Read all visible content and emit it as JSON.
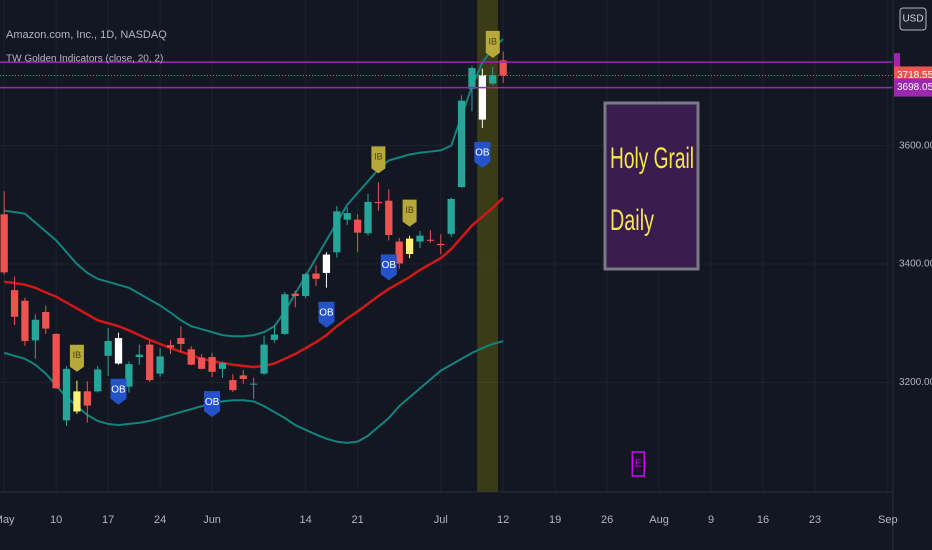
{
  "chart_data": {
    "type": "candlestick",
    "title": "Amazon.com, Inc., 1D, NASDAQ",
    "indicator": "TW Golden Indicators (close, 20, 2)",
    "currency": "USD",
    "open": [
      3484,
      3356,
      3338,
      3271,
      3319,
      3282,
      3136,
      3185,
      3185,
      3185,
      3245,
      3275,
      3193,
      3243,
      3264,
      3215,
      3263,
      3275,
      3256,
      3242,
      3243,
      3223,
      3204,
      3212,
      3197,
      3215,
      3272,
      3282,
      3350,
      3346,
      3384,
      3385,
      3420,
      3475,
      3475,
      3452,
      3505,
      3507,
      3438,
      3417,
      3438,
      3441,
      3434,
      3451,
      3530,
      3696,
      3644,
      3705,
      3744
    ],
    "high": [
      3523,
      3379,
      3343,
      3315,
      3330,
      3283,
      3228,
      3203,
      3202,
      3228,
      3292,
      3284,
      3235,
      3264,
      3270,
      3258,
      3272,
      3295,
      3261,
      3248,
      3250,
      3235,
      3214,
      3221,
      3208,
      3279,
      3297,
      3353,
      3355,
      3385,
      3398,
      3420,
      3498,
      3496,
      3484,
      3519,
      3538,
      3526,
      3444,
      3448,
      3456,
      3457,
      3450,
      3512,
      3685,
      3735,
      3730,
      3733,
      3759
    ],
    "low": [
      3382,
      3297,
      3262,
      3240,
      3282,
      3190,
      3127,
      3147,
      3132,
      3183,
      3211,
      3230,
      3183,
      3230,
      3201,
      3210,
      3248,
      3251,
      3229,
      3222,
      3209,
      3208,
      3184,
      3198,
      3172,
      3213,
      3267,
      3280,
      3327,
      3342,
      3363,
      3360,
      3411,
      3466,
      3420,
      3448,
      3490,
      3440,
      3392,
      3410,
      3427,
      3436,
      3417,
      3446,
      3529,
      3658,
      3630,
      3702,
      3706
    ],
    "close": [
      3386,
      3311,
      3270,
      3306,
      3291,
      3190,
      3223,
      3151,
      3161,
      3222,
      3270,
      3232,
      3231,
      3247,
      3204,
      3244,
      3259,
      3265,
      3230,
      3223,
      3218,
      3233,
      3187,
      3206,
      3198,
      3264,
      3281,
      3349,
      3346,
      3383,
      3375,
      3416,
      3489,
      3486,
      3453,
      3505,
      3503,
      3449,
      3401,
      3443,
      3448,
      3440,
      3432,
      3510,
      3676,
      3731,
      3719,
      3719,
      3718.55
    ],
    "up_color": "#26a69a",
    "down_color": "#ef5350",
    "bar_colors": [
      {
        "bar": 7,
        "color": "#fff176"
      },
      {
        "bar": 11,
        "color": "#ffffff"
      },
      {
        "bar": 31,
        "color": "#ffffff"
      },
      {
        "bar": 39,
        "color": "#fff176"
      },
      {
        "bar": 46,
        "color": "#ffffff"
      }
    ],
    "series": [
      {
        "color": "#d01818",
        "values": [
          3370,
          3368,
          3365,
          3360,
          3352,
          3345,
          3335,
          3325,
          3315,
          3305,
          3300,
          3295,
          3288,
          3280,
          3272,
          3265,
          3258,
          3252,
          3246,
          3240,
          3236,
          3233,
          3230,
          3228,
          3226,
          3228,
          3232,
          3240,
          3248,
          3258,
          3268,
          3280,
          3295,
          3308,
          3320,
          3333,
          3346,
          3358,
          3368,
          3378,
          3390,
          3400,
          3410,
          3425,
          3445,
          3465,
          3480,
          3495,
          3512
        ]
      },
      {
        "color": "#12837e",
        "values": [
          3490,
          3488,
          3485,
          3470,
          3455,
          3440,
          3420,
          3400,
          3385,
          3375,
          3370,
          3365,
          3360,
          3350,
          3340,
          3330,
          3318,
          3305,
          3295,
          3290,
          3285,
          3280,
          3278,
          3278,
          3280,
          3285,
          3295,
          3320,
          3350,
          3380,
          3410,
          3440,
          3470,
          3500,
          3520,
          3540,
          3560,
          3575,
          3580,
          3585,
          3588,
          3590,
          3592,
          3600,
          3650,
          3700,
          3740,
          3765,
          3780
        ]
      },
      {
        "color": "#12837e",
        "values": [
          3250,
          3245,
          3240,
          3230,
          3215,
          3195,
          3175,
          3160,
          3145,
          3135,
          3130,
          3128,
          3130,
          3132,
          3135,
          3140,
          3145,
          3150,
          3155,
          3160,
          3165,
          3168,
          3170,
          3170,
          3168,
          3160,
          3150,
          3140,
          3128,
          3120,
          3112,
          3105,
          3100,
          3098,
          3100,
          3110,
          3125,
          3140,
          3160,
          3175,
          3190,
          3205,
          3220,
          3230,
          3240,
          3250,
          3258,
          3265,
          3270
        ]
      }
    ],
    "xlim": [
      -0.4,
      85.5
    ],
    "xticks": [
      {
        "value": 0,
        "label": "May"
      },
      {
        "value": 5,
        "label": "10"
      },
      {
        "value": 10,
        "label": "17"
      },
      {
        "value": 15,
        "label": "24"
      },
      {
        "value": 20,
        "label": "Jun"
      },
      {
        "value": 29,
        "label": "14"
      },
      {
        "value": 34,
        "label": "21"
      },
      {
        "value": 42,
        "label": "Jul"
      },
      {
        "value": 48,
        "label": "12"
      },
      {
        "value": 53,
        "label": "19"
      },
      {
        "value": 58,
        "label": "26"
      },
      {
        "value": 63,
        "label": "Aug"
      },
      {
        "value": 68,
        "label": "9"
      },
      {
        "value": 73,
        "label": "16"
      },
      {
        "value": 78,
        "label": "23"
      },
      {
        "value": 85,
        "label": "Sep"
      }
    ],
    "ylim": [
      3015,
      3846
    ],
    "yticks": [
      {
        "value": 3200,
        "label": "3200.00"
      },
      {
        "value": 3400,
        "label": "3400.00"
      },
      {
        "value": 3600,
        "label": "3600.00"
      }
    ],
    "grid": true,
    "signals": [
      {
        "label": "IB",
        "bar": 7,
        "place": "above"
      },
      {
        "label": "OB",
        "bar": 11,
        "place": "below"
      },
      {
        "label": "OB",
        "bar": 20,
        "place": "below"
      },
      {
        "label": "OB",
        "bar": 31,
        "place": "below"
      },
      {
        "label": "IB",
        "bar": 36,
        "place": "above"
      },
      {
        "label": "OB",
        "bar": 37,
        "place": "below"
      },
      {
        "label": "IB",
        "bar": 39,
        "place": "above"
      },
      {
        "label": "OB",
        "bar": 46,
        "place": "below"
      },
      {
        "label": "IB",
        "bar": 47,
        "place": "above"
      },
      {
        "label": "E",
        "bar": 61,
        "place": "bottom"
      }
    ],
    "price_lines": [
      {
        "value": 3741,
        "color": "#9c27b0",
        "style": "solid"
      },
      {
        "value": 3718.55,
        "label": "3718.55",
        "color": "#ef5350",
        "style": "dotted"
      },
      {
        "value": 3698.05,
        "label": "3698.05",
        "color": "#9c27b0",
        "style": "solid"
      }
    ],
    "highlight": {
      "from": 46,
      "to": 47,
      "color": "rgba(128,128,0,0.35)"
    },
    "note": {
      "lines": [
        "Holy Grail",
        "Daily"
      ]
    }
  }
}
